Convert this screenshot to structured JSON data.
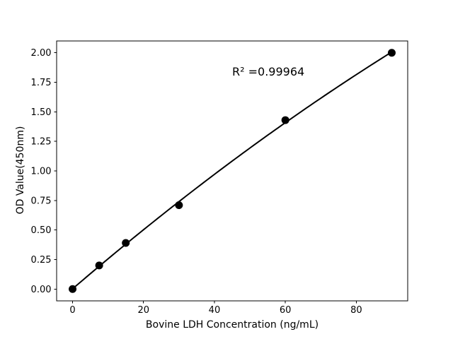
{
  "chart_data": {
    "type": "scatter",
    "fit": "quadratic",
    "x": [
      0,
      7.5,
      15,
      30,
      60,
      90
    ],
    "y": [
      0.0,
      0.2,
      0.39,
      0.71,
      1.43,
      2.0
    ],
    "title": "",
    "xlabel": "Bovine LDH Concentration (ng/mL)",
    "ylabel": "OD Value(450nm)",
    "annotation": "R² =0.99964",
    "xlim": [
      -4.5,
      94.5
    ],
    "ylim": [
      -0.1,
      2.1
    ],
    "x_ticks": {
      "values": [
        0,
        20,
        40,
        60,
        80
      ],
      "labels": [
        "0",
        "20",
        "40",
        "60",
        "80"
      ]
    },
    "y_ticks": {
      "values": [
        0.0,
        0.25,
        0.5,
        0.75,
        1.0,
        1.25,
        1.5,
        1.75,
        2.0
      ],
      "labels": [
        "0.00",
        "0.25",
        "0.50",
        "0.75",
        "1.00",
        "1.25",
        "1.50",
        "1.75",
        "2.00"
      ]
    },
    "grid": false,
    "legend": false,
    "colors": {
      "background": "#ffffff",
      "line": "#000000",
      "marker": "#000000",
      "text": "#000000",
      "spine": "#000000"
    }
  }
}
